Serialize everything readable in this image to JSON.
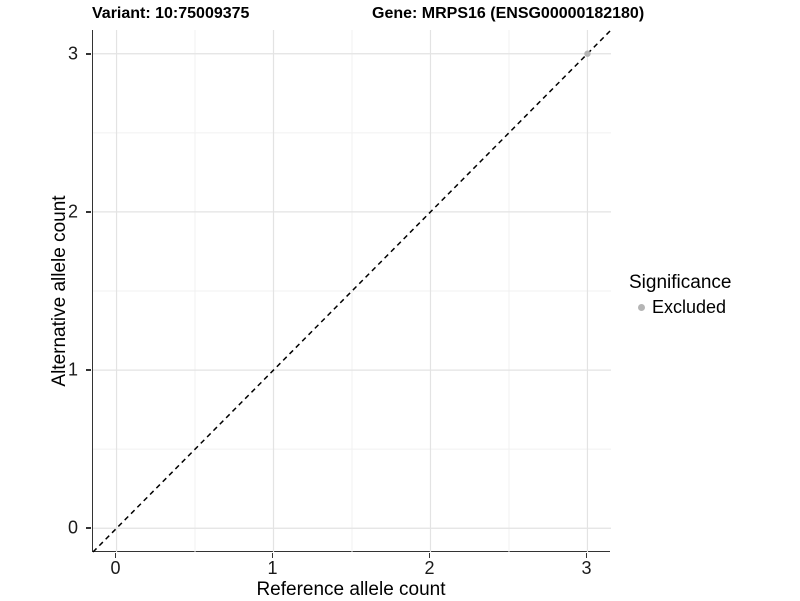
{
  "chart_data": {
    "type": "scatter",
    "title_left": "Variant: 10:75009375",
    "title_right": "Gene: MRPS16 (ENSG00000182180)",
    "xlabel": "Reference allele count",
    "ylabel": "Alternative allele count",
    "xlim": [
      -0.15,
      3.15
    ],
    "ylim": [
      -0.15,
      3.15
    ],
    "x_ticks": [
      0,
      1,
      2,
      3
    ],
    "y_ticks": [
      0,
      1,
      2,
      3
    ],
    "x_minor_gridlines": [
      0.5,
      1.5,
      2.5
    ],
    "y_minor_gridlines": [
      0.5,
      1.5,
      2.5
    ],
    "grid": "major+minor",
    "points": [
      {
        "x": 3,
        "y": 3,
        "significance": "Excluded",
        "color": "#b5b5b5",
        "radius": 3.2
      }
    ],
    "reference_line": {
      "type": "identity",
      "style": "dashed",
      "color": "#000000",
      "from": [
        -0.15,
        -0.15
      ],
      "to": [
        3.15,
        3.15
      ]
    },
    "legend": {
      "title": "Significance",
      "position": "right",
      "items": [
        {
          "label": "Excluded",
          "color": "#b5b5b5"
        }
      ]
    },
    "colors": {
      "background": "#ffffff",
      "grid_major": "#e3e3e3",
      "grid_minor": "#f1f1f1",
      "axis_line": "#333333",
      "tick_text": "#1a1a1a"
    }
  }
}
